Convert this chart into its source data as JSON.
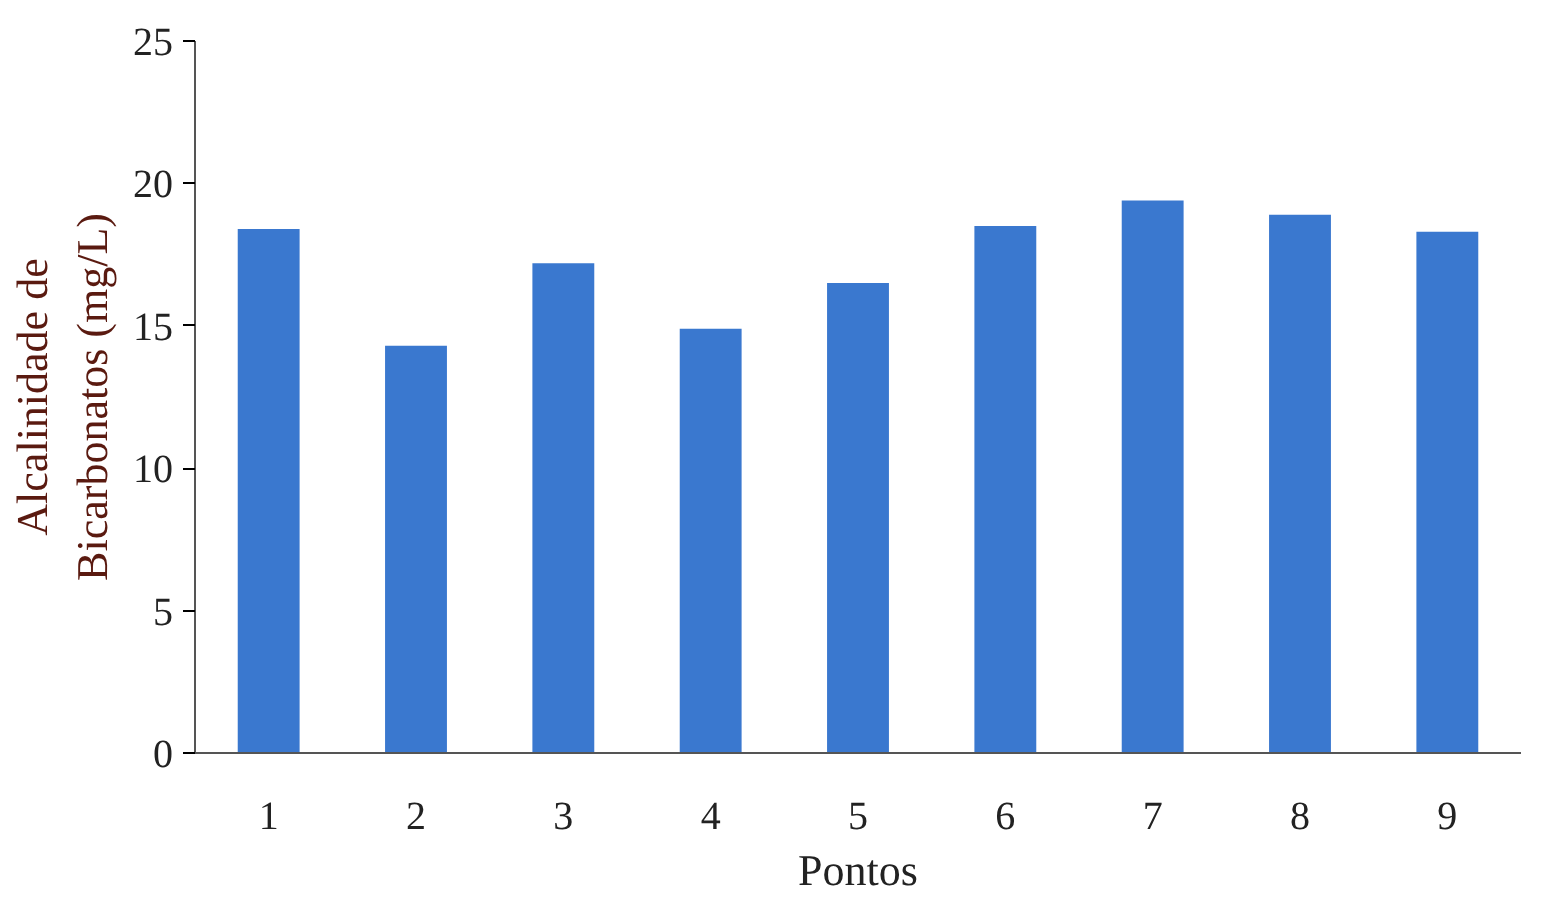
{
  "chart_data": {
    "type": "bar",
    "xlabel": "Pontos",
    "ylabel": "Alcalinidade de\nBicarbonatos (mg/L)",
    "categories": [
      "1",
      "2",
      "3",
      "4",
      "5",
      "6",
      "7",
      "8",
      "9"
    ],
    "values": [
      18.4,
      14.3,
      17.2,
      14.9,
      16.5,
      18.5,
      19.4,
      18.9,
      18.3
    ],
    "color": "#3a78cf",
    "ylim": [
      0,
      25
    ],
    "yticks": [
      0,
      5,
      10,
      15,
      20,
      25
    ],
    "grid": false
  }
}
